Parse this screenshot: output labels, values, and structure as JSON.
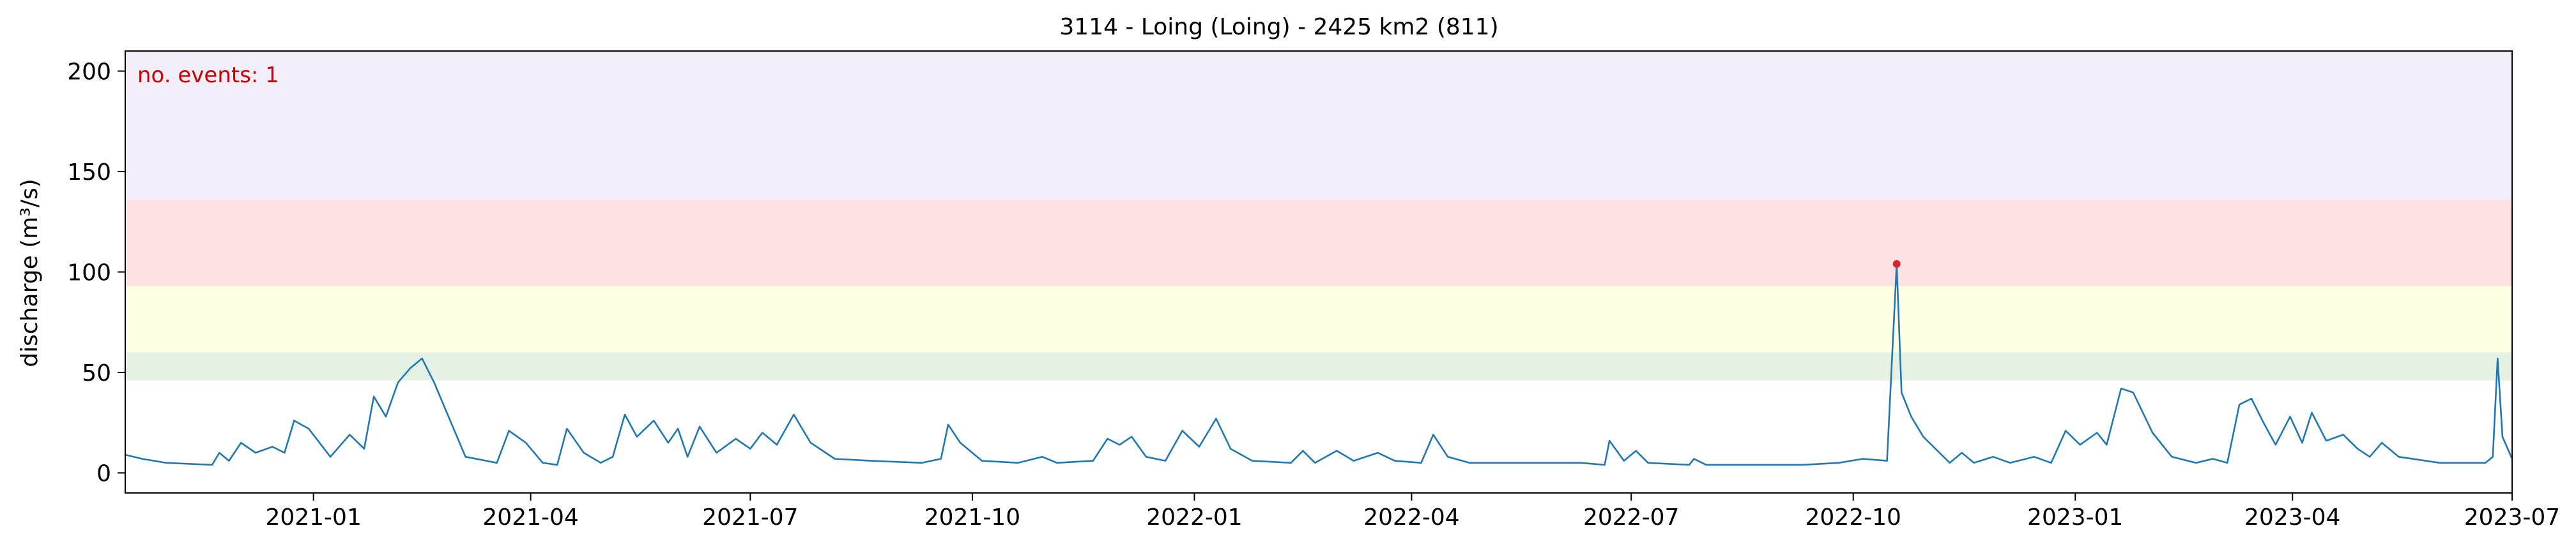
{
  "chart_data": {
    "type": "line",
    "title": "3114 - Loing (Loing) - 2425 km2 (811)",
    "xlabel": "",
    "ylabel": "discharge (m³/s)",
    "xlim": [
      "2020-10-15",
      "2023-07-01"
    ],
    "ylim": [
      -10,
      210
    ],
    "x_ticks": [
      "2021-01",
      "2021-04",
      "2021-07",
      "2021-10",
      "2022-01",
      "2022-04",
      "2022-07",
      "2022-10",
      "2023-01",
      "2023-04",
      "2023-07"
    ],
    "y_ticks": [
      0,
      50,
      100,
      150,
      200
    ],
    "grid": false,
    "annotation": "no. events: 1",
    "annotation_color": "#cc0000",
    "line_color": "#1f77b4",
    "threshold_bands": [
      {
        "from": 46,
        "to": 60,
        "color": "#e4f1e3"
      },
      {
        "from": 60,
        "to": 93,
        "color": "#feffe3"
      },
      {
        "from": 93,
        "to": 136,
        "color": "#fde1e3"
      },
      {
        "from": 136,
        "to": 210,
        "color": "#f1eefa"
      }
    ],
    "events": [
      {
        "date": "2022-10-19",
        "value": 104
      }
    ],
    "series": [
      {
        "points": [
          [
            "2020-10-15",
            9
          ],
          [
            "2020-10-22",
            7
          ],
          [
            "2020-11-01",
            5
          ],
          [
            "2020-11-20",
            4
          ],
          [
            "2020-11-23",
            10
          ],
          [
            "2020-11-27",
            6
          ],
          [
            "2020-12-02",
            15
          ],
          [
            "2020-12-08",
            10
          ],
          [
            "2020-12-15",
            13
          ],
          [
            "2020-12-20",
            10
          ],
          [
            "2020-12-24",
            26
          ],
          [
            "2020-12-30",
            22
          ],
          [
            "2021-01-08",
            8
          ],
          [
            "2021-01-16",
            19
          ],
          [
            "2021-01-22",
            12
          ],
          [
            "2021-01-26",
            38
          ],
          [
            "2021-01-31",
            28
          ],
          [
            "2021-02-05",
            45
          ],
          [
            "2021-02-10",
            52
          ],
          [
            "2021-02-15",
            57
          ],
          [
            "2021-02-20",
            45
          ],
          [
            "2021-02-27",
            25
          ],
          [
            "2021-03-05",
            8
          ],
          [
            "2021-03-18",
            5
          ],
          [
            "2021-03-23",
            21
          ],
          [
            "2021-03-30",
            15
          ],
          [
            "2021-04-06",
            5
          ],
          [
            "2021-04-12",
            4
          ],
          [
            "2021-04-16",
            22
          ],
          [
            "2021-04-23",
            10
          ],
          [
            "2021-04-30",
            5
          ],
          [
            "2021-05-05",
            8
          ],
          [
            "2021-05-10",
            29
          ],
          [
            "2021-05-15",
            18
          ],
          [
            "2021-05-22",
            26
          ],
          [
            "2021-05-28",
            15
          ],
          [
            "2021-06-01",
            22
          ],
          [
            "2021-06-05",
            8
          ],
          [
            "2021-06-10",
            23
          ],
          [
            "2021-06-17",
            10
          ],
          [
            "2021-06-25",
            17
          ],
          [
            "2021-07-01",
            12
          ],
          [
            "2021-07-06",
            20
          ],
          [
            "2021-07-12",
            14
          ],
          [
            "2021-07-19",
            29
          ],
          [
            "2021-07-26",
            15
          ],
          [
            "2021-08-05",
            7
          ],
          [
            "2021-08-20",
            6
          ],
          [
            "2021-09-10",
            5
          ],
          [
            "2021-09-18",
            7
          ],
          [
            "2021-09-21",
            24
          ],
          [
            "2021-09-26",
            15
          ],
          [
            "2021-10-05",
            6
          ],
          [
            "2021-10-20",
            5
          ],
          [
            "2021-10-30",
            8
          ],
          [
            "2021-11-05",
            5
          ],
          [
            "2021-11-20",
            6
          ],
          [
            "2021-11-26",
            17
          ],
          [
            "2021-12-01",
            14
          ],
          [
            "2021-12-06",
            18
          ],
          [
            "2021-12-12",
            8
          ],
          [
            "2021-12-20",
            6
          ],
          [
            "2021-12-27",
            21
          ],
          [
            "2022-01-03",
            13
          ],
          [
            "2022-01-10",
            27
          ],
          [
            "2022-01-16",
            12
          ],
          [
            "2022-01-25",
            6
          ],
          [
            "2022-02-10",
            5
          ],
          [
            "2022-02-15",
            11
          ],
          [
            "2022-02-20",
            5
          ],
          [
            "2022-03-01",
            11
          ],
          [
            "2022-03-08",
            6
          ],
          [
            "2022-03-18",
            10
          ],
          [
            "2022-03-25",
            6
          ],
          [
            "2022-04-05",
            5
          ],
          [
            "2022-04-10",
            19
          ],
          [
            "2022-04-16",
            8
          ],
          [
            "2022-04-25",
            5
          ],
          [
            "2022-05-15",
            5
          ],
          [
            "2022-06-10",
            5
          ],
          [
            "2022-06-20",
            4
          ],
          [
            "2022-06-22",
            16
          ],
          [
            "2022-06-28",
            6
          ],
          [
            "2022-07-03",
            11
          ],
          [
            "2022-07-08",
            5
          ],
          [
            "2022-07-25",
            4
          ],
          [
            "2022-07-27",
            7
          ],
          [
            "2022-08-01",
            4
          ],
          [
            "2022-08-20",
            4
          ],
          [
            "2022-09-10",
            4
          ],
          [
            "2022-09-25",
            5
          ],
          [
            "2022-10-05",
            7
          ],
          [
            "2022-10-15",
            6
          ],
          [
            "2022-10-19",
            104
          ],
          [
            "2022-10-21",
            40
          ],
          [
            "2022-10-25",
            28
          ],
          [
            "2022-10-30",
            18
          ],
          [
            "2022-11-10",
            5
          ],
          [
            "2022-11-15",
            10
          ],
          [
            "2022-11-20",
            5
          ],
          [
            "2022-11-28",
            8
          ],
          [
            "2022-12-05",
            5
          ],
          [
            "2022-12-15",
            8
          ],
          [
            "2022-12-22",
            5
          ],
          [
            "2022-12-28",
            21
          ],
          [
            "2023-01-03",
            14
          ],
          [
            "2023-01-10",
            20
          ],
          [
            "2023-01-14",
            14
          ],
          [
            "2023-01-20",
            42
          ],
          [
            "2023-01-25",
            40
          ],
          [
            "2023-02-02",
            20
          ],
          [
            "2023-02-10",
            8
          ],
          [
            "2023-02-20",
            5
          ],
          [
            "2023-02-27",
            7
          ],
          [
            "2023-03-05",
            5
          ],
          [
            "2023-03-10",
            34
          ],
          [
            "2023-03-15",
            37
          ],
          [
            "2023-03-20",
            25
          ],
          [
            "2023-03-25",
            14
          ],
          [
            "2023-03-31",
            28
          ],
          [
            "2023-04-05",
            15
          ],
          [
            "2023-04-09",
            30
          ],
          [
            "2023-04-15",
            16
          ],
          [
            "2023-04-22",
            19
          ],
          [
            "2023-04-28",
            12
          ],
          [
            "2023-05-03",
            8
          ],
          [
            "2023-05-08",
            15
          ],
          [
            "2023-05-15",
            8
          ],
          [
            "2023-06-01",
            5
          ],
          [
            "2023-06-20",
            5
          ],
          [
            "2023-06-23",
            8
          ],
          [
            "2023-06-25",
            57
          ],
          [
            "2023-06-27",
            18
          ],
          [
            "2023-07-01",
            7
          ]
        ]
      }
    ]
  }
}
